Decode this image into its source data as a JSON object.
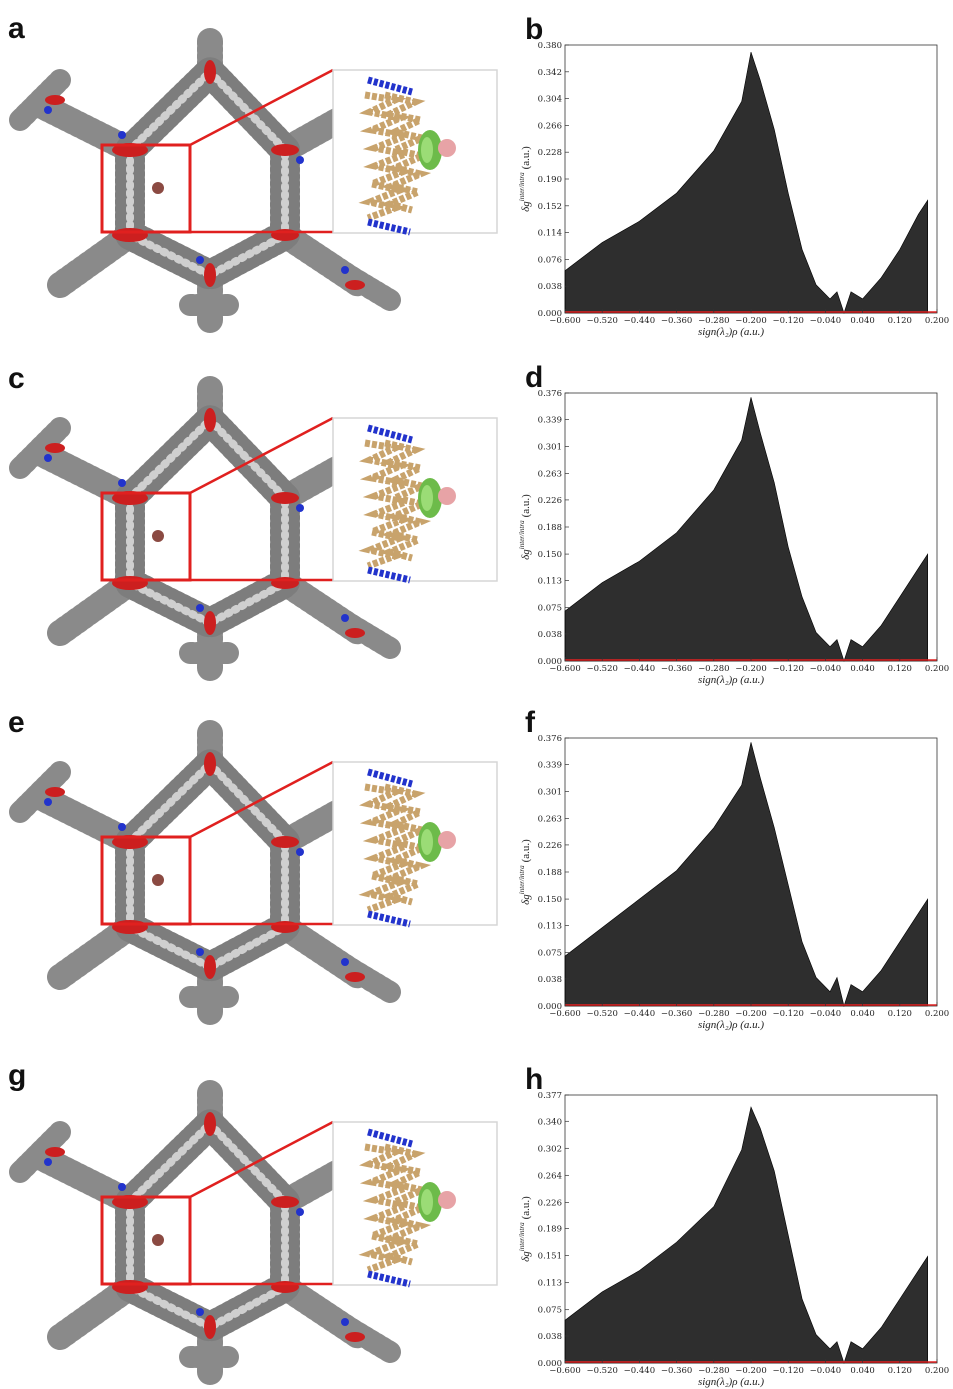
{
  "images": [
    {
      "panel": "a"
    },
    {
      "panel": "c"
    },
    {
      "panel": "e"
    },
    {
      "panel": "g"
    }
  ],
  "chart_data": [
    {
      "type": "scatter",
      "panel": "b",
      "xlabel": "sign(λ₂)ρ (a.u.)",
      "ylabel": {
        "main": "δg",
        "sup": "inter/intra",
        "unit": "(a.u.)"
      },
      "series": [
        {
          "color": "#000000",
          "x": [
            -0.6,
            -0.52,
            -0.44,
            -0.36,
            -0.28,
            -0.22,
            -0.2,
            -0.18,
            -0.15,
            -0.12,
            -0.09,
            -0.06,
            -0.03,
            -0.015,
            0,
            0.015,
            0.04,
            0.08,
            0.12,
            0.16,
            0.18
          ],
          "values": [
            0.06,
            0.1,
            0.13,
            0.17,
            0.23,
            0.3,
            0.37,
            0.33,
            0.26,
            0.17,
            0.09,
            0.04,
            0.02,
            0.03,
            0.0,
            0.03,
            0.02,
            0.05,
            0.09,
            0.14,
            0.16
          ]
        }
      ],
      "xlim": [
        -0.6,
        0.2
      ],
      "ylim": [
        0,
        0.38
      ],
      "xticks": [
        {
          "value": -0.6,
          "label": "−0.600"
        },
        {
          "value": -0.52,
          "label": "−0.520"
        },
        {
          "value": -0.44,
          "label": "−0.440"
        },
        {
          "value": -0.36,
          "label": "−0.360"
        },
        {
          "value": -0.28,
          "label": "−0.280"
        },
        {
          "value": -0.2,
          "label": "−0.200"
        },
        {
          "value": -0.12,
          "label": "−0.120"
        },
        {
          "value": -0.04,
          "label": "−0.040"
        },
        {
          "value": 0.04,
          "label": "0.040"
        },
        {
          "value": 0.12,
          "label": "0.120"
        },
        {
          "value": 0.2,
          "label": "0.200"
        }
      ],
      "yticks": [
        {
          "value": 0,
          "label": "0.000"
        },
        0.038,
        0.076,
        0.114,
        0.152,
        {
          "value": 0.19,
          "label": "0.190"
        },
        0.228,
        0.266,
        0.304,
        0.342,
        {
          "value": 0.38,
          "label": "0.380"
        }
      ]
    },
    {
      "type": "scatter",
      "panel": "d",
      "xlabel": "sign(λ₂)ρ (a.u.)",
      "ylabel": {
        "main": "δg",
        "sup": "inter/intra",
        "unit": "(a.u.)"
      },
      "series": [
        {
          "color": "#000000",
          "x": [
            -0.6,
            -0.52,
            -0.44,
            -0.36,
            -0.28,
            -0.22,
            -0.2,
            -0.18,
            -0.15,
            -0.12,
            -0.09,
            -0.06,
            -0.03,
            -0.015,
            0,
            0.015,
            0.04,
            0.08,
            0.12,
            0.16,
            0.18
          ],
          "values": [
            0.07,
            0.11,
            0.14,
            0.18,
            0.24,
            0.31,
            0.37,
            0.32,
            0.25,
            0.16,
            0.09,
            0.04,
            0.02,
            0.03,
            0.0,
            0.03,
            0.02,
            0.05,
            0.09,
            0.13,
            0.15
          ]
        }
      ],
      "xlim": [
        -0.6,
        0.2
      ],
      "ylim": [
        0,
        0.376
      ],
      "xticks": [
        {
          "value": -0.6,
          "label": "−0.600"
        },
        {
          "value": -0.52,
          "label": "−0.520"
        },
        {
          "value": -0.44,
          "label": "−0.440"
        },
        {
          "value": -0.36,
          "label": "−0.360"
        },
        {
          "value": -0.28,
          "label": "−0.280"
        },
        {
          "value": -0.2,
          "label": "−0.200"
        },
        {
          "value": -0.12,
          "label": "−0.120"
        },
        {
          "value": -0.04,
          "label": "−0.040"
        },
        {
          "value": 0.04,
          "label": "0.040"
        },
        {
          "value": 0.12,
          "label": "0.120"
        },
        {
          "value": 0.2,
          "label": "0.200"
        }
      ],
      "yticks": [
        {
          "value": 0,
          "label": "0.000"
        },
        0.038,
        0.075,
        0.113,
        {
          "value": 0.15,
          "label": "0.150"
        },
        0.188,
        0.226,
        0.263,
        0.301,
        0.339,
        0.376
      ]
    },
    {
      "type": "scatter",
      "panel": "f",
      "xlabel": "sign(λ₂)ρ (a.u.)",
      "ylabel": {
        "main": "δg",
        "sup": "inter/intra",
        "unit": "(a.u.)"
      },
      "series": [
        {
          "color": "#000000",
          "x": [
            -0.6,
            -0.52,
            -0.44,
            -0.36,
            -0.28,
            -0.22,
            -0.2,
            -0.18,
            -0.15,
            -0.12,
            -0.09,
            -0.06,
            -0.03,
            -0.015,
            0,
            0.015,
            0.04,
            0.08,
            0.12,
            0.16,
            0.18
          ],
          "values": [
            0.07,
            0.11,
            0.15,
            0.19,
            0.25,
            0.31,
            0.37,
            0.32,
            0.25,
            0.17,
            0.09,
            0.04,
            0.02,
            0.04,
            0.0,
            0.03,
            0.02,
            0.05,
            0.09,
            0.13,
            0.15
          ]
        }
      ],
      "xlim": [
        -0.6,
        0.2
      ],
      "ylim": [
        0,
        0.376
      ],
      "xticks": [
        {
          "value": -0.6,
          "label": "−0.600"
        },
        {
          "value": -0.52,
          "label": "−0.520"
        },
        {
          "value": -0.44,
          "label": "−0.440"
        },
        {
          "value": -0.36,
          "label": "−0.360"
        },
        {
          "value": -0.28,
          "label": "−0.280"
        },
        {
          "value": -0.2,
          "label": "−0.200"
        },
        {
          "value": -0.12,
          "label": "−0.120"
        },
        {
          "value": -0.04,
          "label": "−0.040"
        },
        {
          "value": 0.04,
          "label": "0.040"
        },
        {
          "value": 0.12,
          "label": "0.120"
        },
        {
          "value": 0.2,
          "label": "0.200"
        }
      ],
      "yticks": [
        {
          "value": 0,
          "label": "0.000"
        },
        0.038,
        0.075,
        0.113,
        {
          "value": 0.15,
          "label": "0.150"
        },
        0.188,
        0.226,
        0.263,
        0.301,
        0.339,
        0.376
      ]
    },
    {
      "type": "scatter",
      "panel": "h",
      "xlabel": "sign(λ₂)ρ (a.u.)",
      "ylabel": {
        "main": "δg",
        "sup": "inter/intra",
        "unit": "(a.u.)"
      },
      "series": [
        {
          "color": "#000000",
          "x": [
            -0.6,
            -0.52,
            -0.44,
            -0.36,
            -0.28,
            -0.22,
            -0.2,
            -0.18,
            -0.15,
            -0.12,
            -0.09,
            -0.06,
            -0.03,
            -0.015,
            0,
            0.015,
            0.04,
            0.08,
            0.12,
            0.16,
            0.18
          ],
          "values": [
            0.06,
            0.1,
            0.13,
            0.17,
            0.22,
            0.3,
            0.36,
            0.33,
            0.27,
            0.18,
            0.09,
            0.04,
            0.02,
            0.03,
            0.0,
            0.03,
            0.02,
            0.05,
            0.09,
            0.13,
            0.15
          ]
        }
      ],
      "xlim": [
        -0.6,
        0.2
      ],
      "ylim": [
        0,
        0.377
      ],
      "xticks": [
        {
          "value": -0.6,
          "label": "−0.600"
        },
        {
          "value": -0.52,
          "label": "−0.520"
        },
        {
          "value": -0.44,
          "label": "−0.440"
        },
        {
          "value": -0.36,
          "label": "−0.360"
        },
        {
          "value": -0.28,
          "label": "−0.280"
        },
        {
          "value": -0.2,
          "label": "−0.200"
        },
        {
          "value": -0.12,
          "label": "−0.120"
        },
        {
          "value": -0.04,
          "label": "−0.040"
        },
        {
          "value": 0.04,
          "label": "0.040"
        },
        {
          "value": 0.12,
          "label": "0.120"
        },
        {
          "value": 0.2,
          "label": "0.200"
        }
      ],
      "yticks": [
        {
          "value": 0,
          "label": "0.000"
        },
        0.038,
        0.075,
        0.113,
        0.151,
        0.189,
        0.226,
        0.264,
        0.302,
        {
          "value": 0.34,
          "label": "0.340"
        },
        0.377
      ]
    }
  ]
}
